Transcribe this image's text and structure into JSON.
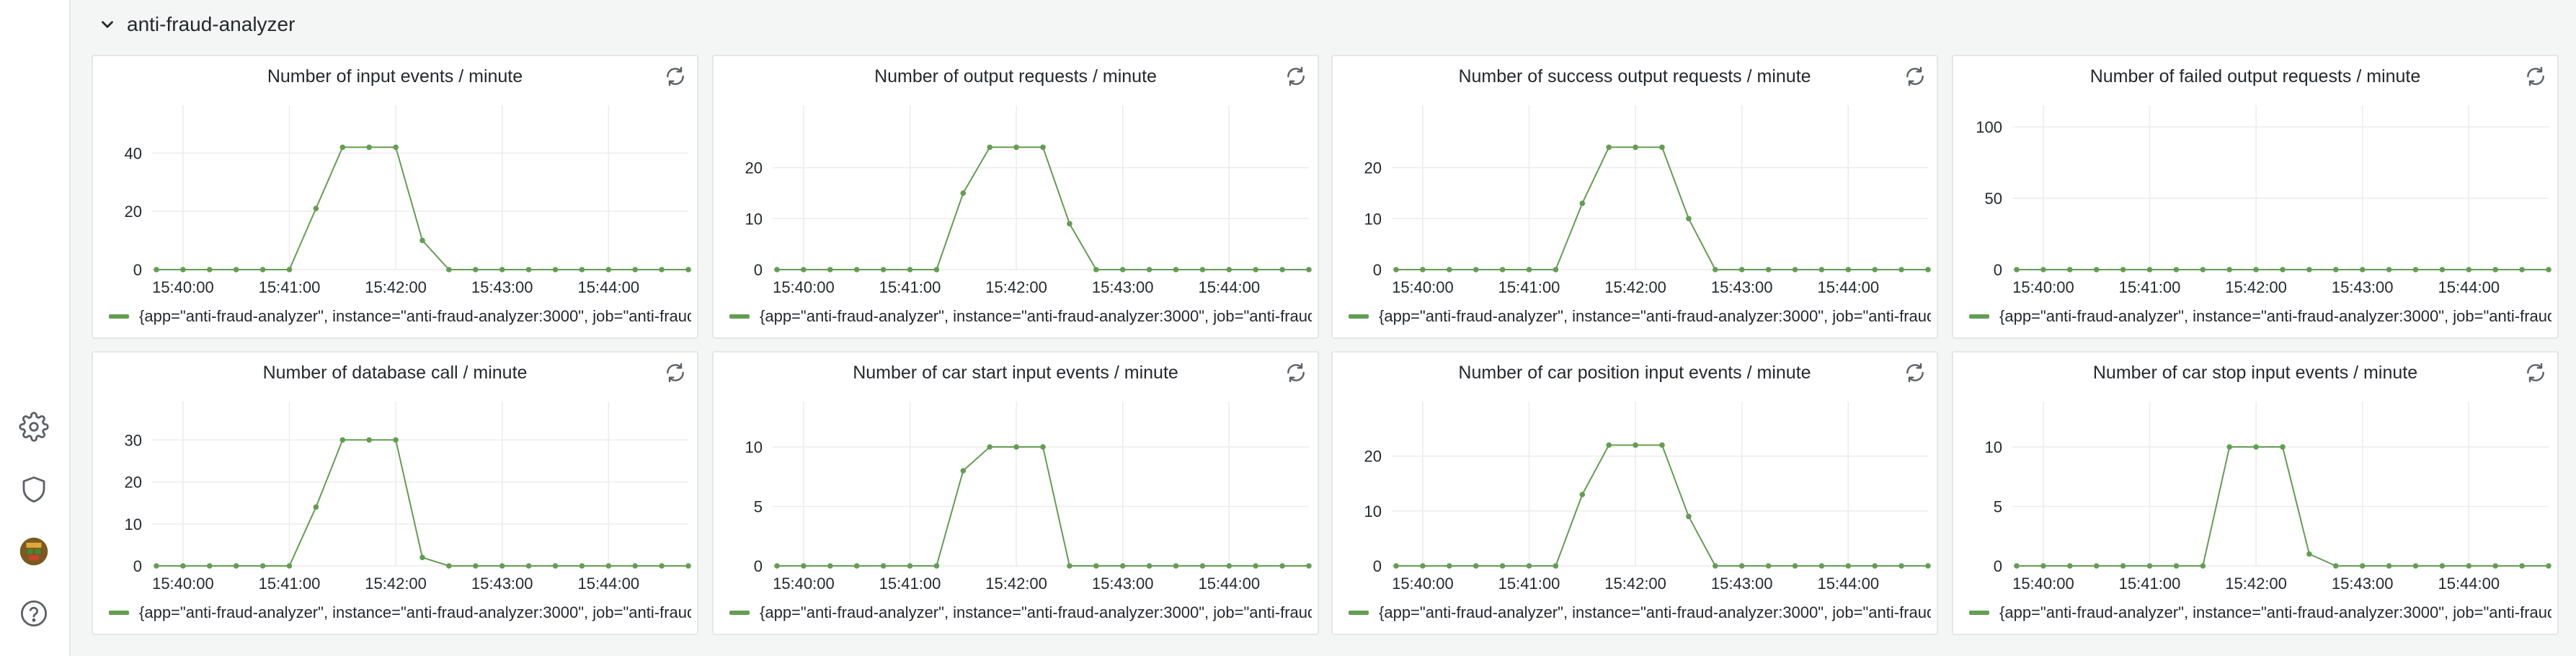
{
  "row": {
    "title": "anti-fraud-analyzer"
  },
  "sidemenu": {
    "icons": [
      "gear-icon",
      "shield-icon",
      "avatar",
      "help-icon"
    ]
  },
  "colors": {
    "series": "#629e51",
    "grid": "#ececec"
  },
  "legend_text": "{app=\"anti-fraud-analyzer\", instance=\"anti-fraud-analyzer:3000\", job=\"anti-fraud-analyzer\"}",
  "chart_data": [
    {
      "type": "line",
      "title": "Number of input events / minute",
      "x": [
        "15:39:45",
        "15:40:00",
        "15:40:15",
        "15:40:30",
        "15:40:45",
        "15:41:00",
        "15:41:15",
        "15:41:30",
        "15:41:45",
        "15:42:00",
        "15:42:15",
        "15:42:30",
        "15:42:45",
        "15:43:00",
        "15:43:15",
        "15:43:30",
        "15:43:45",
        "15:44:00",
        "15:44:15",
        "15:44:30",
        "15:44:45"
      ],
      "x_ticks": [
        "15:40:00",
        "15:41:00",
        "15:42:00",
        "15:43:00",
        "15:44:00"
      ],
      "y_ticks": [
        "0",
        "20",
        "40"
      ],
      "ylim": [
        0,
        49
      ],
      "grid": true,
      "series": [
        {
          "name": "{app=\"anti-fraud-analyzer\", instance=\"anti-fraud-analyzer:3000\", job=\"anti-fraud-analyzer\"}",
          "values": [
            0,
            0,
            0,
            0,
            0,
            0,
            21,
            42,
            42,
            42,
            10,
            0,
            0,
            0,
            0,
            0,
            0,
            0,
            0,
            0,
            0
          ]
        }
      ]
    },
    {
      "type": "line",
      "title": "Number of output requests / minute",
      "x": [
        "15:39:45",
        "15:40:00",
        "15:40:15",
        "15:40:30",
        "15:40:45",
        "15:41:00",
        "15:41:15",
        "15:41:30",
        "15:41:45",
        "15:42:00",
        "15:42:15",
        "15:42:30",
        "15:42:45",
        "15:43:00",
        "15:43:15",
        "15:43:30",
        "15:43:45",
        "15:44:00",
        "15:44:15",
        "15:44:30",
        "15:44:45"
      ],
      "x_ticks": [
        "15:40:00",
        "15:41:00",
        "15:42:00",
        "15:43:00",
        "15:44:00"
      ],
      "y_ticks": [
        "0",
        "10",
        "20"
      ],
      "ylim": [
        0,
        28
      ],
      "grid": true,
      "series": [
        {
          "name": "{app=\"anti-fraud-analyzer\", instance=\"anti-fraud-analyzer:3000\", job=\"anti-fraud-analyzer\"}",
          "values": [
            0,
            0,
            0,
            0,
            0,
            0,
            0,
            15,
            24,
            24,
            24,
            9,
            0,
            0,
            0,
            0,
            0,
            0,
            0,
            0,
            0
          ]
        }
      ]
    },
    {
      "type": "line",
      "title": "Number of success output requests / minute",
      "x": [
        "15:39:45",
        "15:40:00",
        "15:40:15",
        "15:40:30",
        "15:40:45",
        "15:41:00",
        "15:41:15",
        "15:41:30",
        "15:41:45",
        "15:42:00",
        "15:42:15",
        "15:42:30",
        "15:42:45",
        "15:43:00",
        "15:43:15",
        "15:43:30",
        "15:43:45",
        "15:44:00",
        "15:44:15",
        "15:44:30",
        "15:44:45"
      ],
      "x_ticks": [
        "15:40:00",
        "15:41:00",
        "15:42:00",
        "15:43:00",
        "15:44:00"
      ],
      "y_ticks": [
        "0",
        "10",
        "20"
      ],
      "ylim": [
        0,
        28
      ],
      "grid": true,
      "series": [
        {
          "name": "{app=\"anti-fraud-analyzer\", instance=\"anti-fraud-analyzer:3000\", job=\"anti-fraud-analyzer\"}",
          "values": [
            0,
            0,
            0,
            0,
            0,
            0,
            0,
            13,
            24,
            24,
            24,
            10,
            0,
            0,
            0,
            0,
            0,
            0,
            0,
            0,
            0
          ]
        }
      ]
    },
    {
      "type": "line",
      "title": "Number of failed output requests / minute",
      "x": [
        "15:39:45",
        "15:40:00",
        "15:40:15",
        "15:40:30",
        "15:40:45",
        "15:41:00",
        "15:41:15",
        "15:41:30",
        "15:41:45",
        "15:42:00",
        "15:42:15",
        "15:42:30",
        "15:42:45",
        "15:43:00",
        "15:43:15",
        "15:43:30",
        "15:43:45",
        "15:44:00",
        "15:44:15",
        "15:44:30",
        "15:44:45"
      ],
      "x_ticks": [
        "15:40:00",
        "15:41:00",
        "15:42:00",
        "15:43:00",
        "15:44:00"
      ],
      "y_ticks": [
        "0",
        "50",
        "100"
      ],
      "ylim": [
        0,
        100
      ],
      "grid": true,
      "series": [
        {
          "name": "{app=\"anti-fraud-analyzer\", instance=\"anti-fraud-analyzer:3000\", job=\"anti-fraud-analyzer\"}",
          "values": [
            0,
            0,
            0,
            0,
            0,
            0,
            0,
            0,
            0,
            0,
            0,
            0,
            0,
            0,
            0,
            0,
            0,
            0,
            0,
            0,
            0
          ]
        }
      ]
    },
    {
      "type": "line",
      "title": "Number of database call / minute",
      "x": [
        "15:39:45",
        "15:40:00",
        "15:40:15",
        "15:40:30",
        "15:40:45",
        "15:41:00",
        "15:41:15",
        "15:41:30",
        "15:41:45",
        "15:42:00",
        "15:42:15",
        "15:42:30",
        "15:42:45",
        "15:43:00",
        "15:43:15",
        "15:43:30",
        "15:43:45",
        "15:44:00",
        "15:44:15",
        "15:44:30",
        "15:44:45"
      ],
      "x_ticks": [
        "15:40:00",
        "15:41:00",
        "15:42:00",
        "15:43:00",
        "15:44:00"
      ],
      "y_ticks": [
        "0",
        "10",
        "20",
        "30"
      ],
      "ylim": [
        0,
        34
      ],
      "grid": true,
      "series": [
        {
          "name": "{app=\"anti-fraud-analyzer\", instance=\"anti-fraud-analyzer:3000\", job=\"anti-fraud-analyzer\"}",
          "values": [
            0,
            0,
            0,
            0,
            0,
            0,
            14,
            30,
            30,
            30,
            2,
            0,
            0,
            0,
            0,
            0,
            0,
            0,
            0,
            0,
            0
          ]
        }
      ]
    },
    {
      "type": "line",
      "title": "Number of car start input events / minute",
      "x": [
        "15:39:45",
        "15:40:00",
        "15:40:15",
        "15:40:30",
        "15:40:45",
        "15:41:00",
        "15:41:15",
        "15:41:30",
        "15:41:45",
        "15:42:00",
        "15:42:15",
        "15:42:30",
        "15:42:45",
        "15:43:00",
        "15:43:15",
        "15:43:30",
        "15:43:45",
        "15:44:00",
        "15:44:15",
        "15:44:30",
        "15:44:45"
      ],
      "x_ticks": [
        "15:40:00",
        "15:41:00",
        "15:42:00",
        "15:43:00",
        "15:44:00"
      ],
      "y_ticks": [
        "0",
        "5",
        "10"
      ],
      "ylim": [
        0,
        12
      ],
      "grid": true,
      "series": [
        {
          "name": "{app=\"anti-fraud-analyzer\", instance=\"anti-fraud-analyzer:3000\", job=\"anti-fraud-analyzer\"}",
          "values": [
            0,
            0,
            0,
            0,
            0,
            0,
            0,
            8,
            10,
            10,
            10,
            0,
            0,
            0,
            0,
            0,
            0,
            0,
            0,
            0,
            0
          ]
        }
      ]
    },
    {
      "type": "line",
      "title": "Number of car position input events / minute",
      "x": [
        "15:39:45",
        "15:40:00",
        "15:40:15",
        "15:40:30",
        "15:40:45",
        "15:41:00",
        "15:41:15",
        "15:41:30",
        "15:41:45",
        "15:42:00",
        "15:42:15",
        "15:42:30",
        "15:42:45",
        "15:43:00",
        "15:43:15",
        "15:43:30",
        "15:43:45",
        "15:44:00",
        "15:44:15",
        "15:44:30",
        "15:44:45"
      ],
      "x_ticks": [
        "15:40:00",
        "15:41:00",
        "15:42:00",
        "15:43:00",
        "15:44:00"
      ],
      "y_ticks": [
        "0",
        "10",
        "20"
      ],
      "ylim": [
        0,
        26
      ],
      "grid": true,
      "series": [
        {
          "name": "{app=\"anti-fraud-analyzer\", instance=\"anti-fraud-analyzer:3000\", job=\"anti-fraud-analyzer\"}",
          "values": [
            0,
            0,
            0,
            0,
            0,
            0,
            0,
            13,
            22,
            22,
            22,
            9,
            0,
            0,
            0,
            0,
            0,
            0,
            0,
            0,
            0
          ]
        }
      ]
    },
    {
      "type": "line",
      "title": "Number of car stop input events / minute",
      "x": [
        "15:39:45",
        "15:40:00",
        "15:40:15",
        "15:40:30",
        "15:40:45",
        "15:41:00",
        "15:41:15",
        "15:41:30",
        "15:41:45",
        "15:42:00",
        "15:42:15",
        "15:42:30",
        "15:42:45",
        "15:43:00",
        "15:43:15",
        "15:43:30",
        "15:43:45",
        "15:44:00",
        "15:44:15",
        "15:44:30",
        "15:44:45"
      ],
      "x_ticks": [
        "15:40:00",
        "15:41:00",
        "15:42:00",
        "15:43:00",
        "15:44:00"
      ],
      "y_ticks": [
        "0",
        "5",
        "10"
      ],
      "ylim": [
        0,
        12
      ],
      "grid": true,
      "series": [
        {
          "name": "{app=\"anti-fraud-analyzer\", instance=\"anti-fraud-analyzer:3000\", job=\"anti-fraud-analyzer\"}",
          "values": [
            0,
            0,
            0,
            0,
            0,
            0,
            0,
            0,
            10,
            10,
            10,
            1,
            0,
            0,
            0,
            0,
            0,
            0,
            0,
            0,
            0
          ]
        }
      ]
    }
  ]
}
